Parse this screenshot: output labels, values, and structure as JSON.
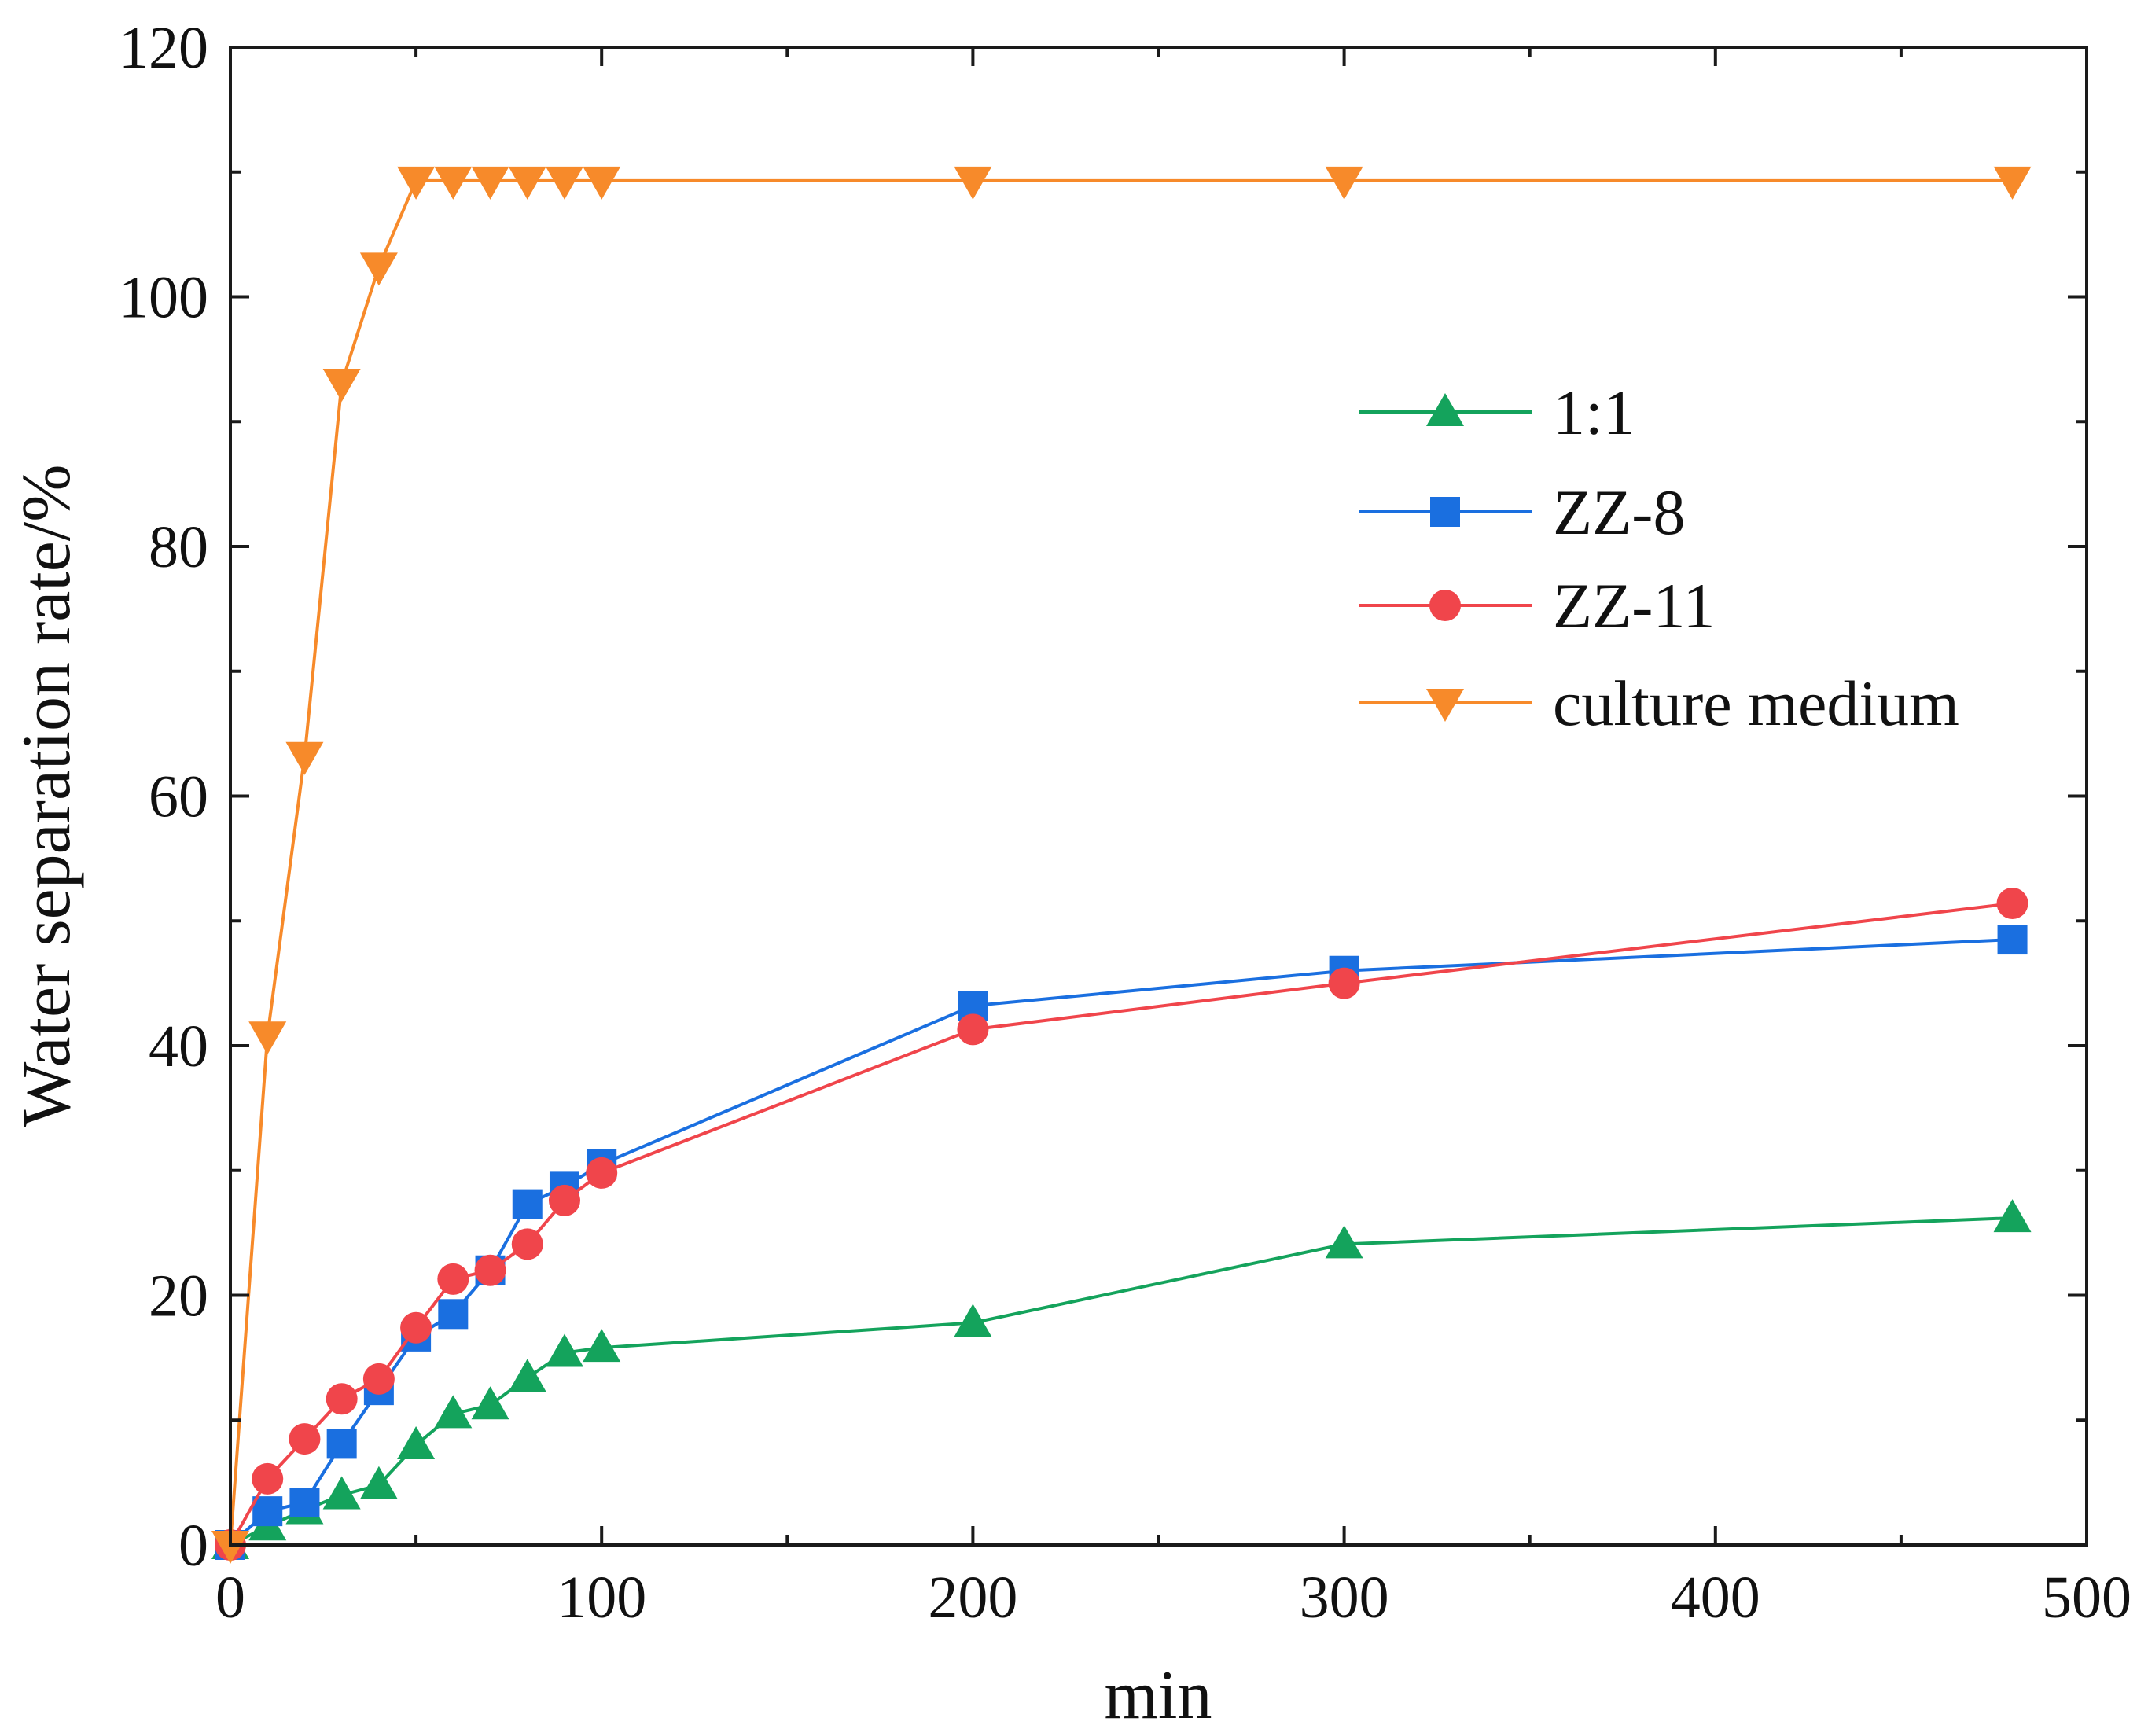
{
  "chart_data": {
    "type": "line",
    "xlabel": "min",
    "ylabel": "Water separation rate/%",
    "xlim": [
      0,
      500
    ],
    "ylim": [
      0,
      120
    ],
    "xticks": [
      0,
      100,
      200,
      300,
      400,
      500
    ],
    "yticks": [
      0,
      20,
      40,
      60,
      80,
      100,
      120
    ],
    "grid": false,
    "legend_position": "center-right",
    "series": [
      {
        "name": "1:1",
        "color": "#14a35c",
        "marker": "triangle-up",
        "x": [
          0,
          10,
          20,
          30,
          40,
          50,
          60,
          70,
          80,
          90,
          100,
          200,
          300,
          480
        ],
        "y": [
          0,
          1.5,
          2.8,
          4.0,
          4.8,
          8.0,
          10.5,
          11.2,
          13.4,
          15.4,
          15.8,
          17.8,
          24.1,
          26.2
        ]
      },
      {
        "name": "ZZ-8",
        "color": "#1a6fe0",
        "marker": "square",
        "x": [
          0,
          10,
          20,
          30,
          40,
          50,
          60,
          70,
          80,
          90,
          100,
          200,
          300,
          480
        ],
        "y": [
          0,
          2.7,
          3.4,
          8.1,
          12.4,
          16.7,
          18.5,
          22.0,
          27.3,
          28.7,
          30.5,
          43.2,
          46.0,
          48.5
        ]
      },
      {
        "name": "ZZ-11",
        "color": "#f0454b",
        "marker": "circle",
        "x": [
          0,
          10,
          20,
          30,
          40,
          50,
          60,
          70,
          80,
          90,
          100,
          200,
          300,
          480
        ],
        "y": [
          0,
          5.3,
          8.5,
          11.7,
          13.3,
          17.4,
          21.3,
          22.0,
          24.1,
          27.6,
          29.8,
          41.3,
          45.0,
          51.4
        ]
      },
      {
        "name": "culture medium",
        "color": "#f78a2a",
        "marker": "triangle-down",
        "x": [
          0,
          10,
          20,
          30,
          40,
          50,
          60,
          70,
          80,
          90,
          100,
          200,
          300,
          480
        ],
        "y": [
          0,
          40.8,
          63.2,
          93.1,
          102.4,
          109.3,
          109.3,
          109.3,
          109.3,
          109.3,
          109.3,
          109.3,
          109.3,
          109.3
        ]
      }
    ]
  }
}
